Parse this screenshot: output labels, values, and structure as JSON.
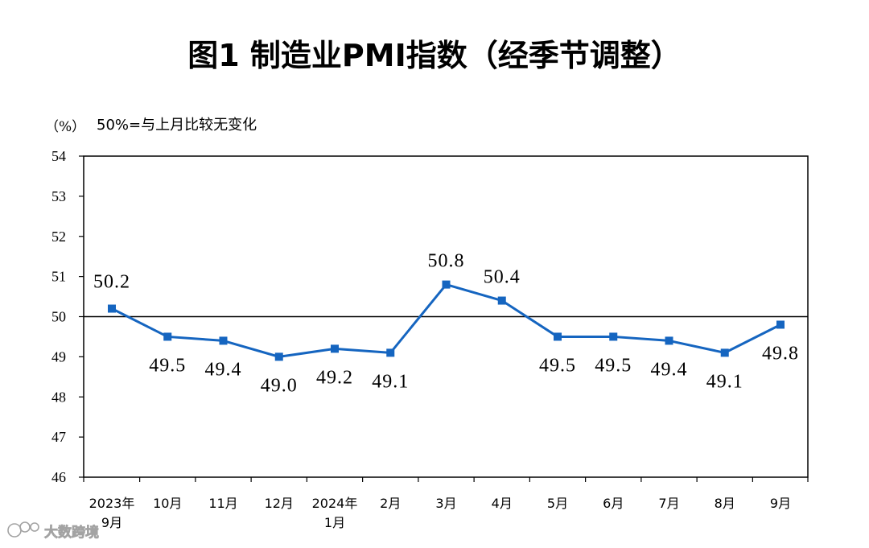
{
  "chart_data": {
    "type": "line",
    "title": "图1  制造业PMI指数（经季节调整）",
    "unit": "（%）",
    "note": "50%=与上月比较无变化",
    "categories": [
      [
        "2023年",
        "9月"
      ],
      [
        "10月"
      ],
      [
        "11月"
      ],
      [
        "12月"
      ],
      [
        "2024年",
        "1月"
      ],
      [
        "2月"
      ],
      [
        "3月"
      ],
      [
        "4月"
      ],
      [
        "5月"
      ],
      [
        "6月"
      ],
      [
        "7月"
      ],
      [
        "8月"
      ],
      [
        "9月"
      ]
    ],
    "series": [
      {
        "values": [
          50.2,
          49.5,
          49.4,
          49.0,
          49.2,
          49.1,
          50.8,
          50.4,
          49.5,
          49.5,
          49.4,
          49.1,
          49.8
        ],
        "data_labels": [
          "50.2",
          "49.5",
          "49.4",
          "49.0",
          "49.2",
          "49.1",
          "50.8",
          "50.4",
          "49.5",
          "49.5",
          "49.4",
          "49.1",
          "49.8"
        ]
      }
    ],
    "ylim": [
      46,
      54
    ],
    "yticks": [
      "46",
      "47",
      "48",
      "49",
      "50",
      "51",
      "52",
      "53",
      "54"
    ],
    "reference_line": 50,
    "grid": false,
    "colors": {
      "line": "#1565C0",
      "marker": "#1565C0",
      "axis": "#000000"
    }
  },
  "watermark": {
    "text": "大数跨境",
    "icon": "watermark-logo-icon"
  }
}
